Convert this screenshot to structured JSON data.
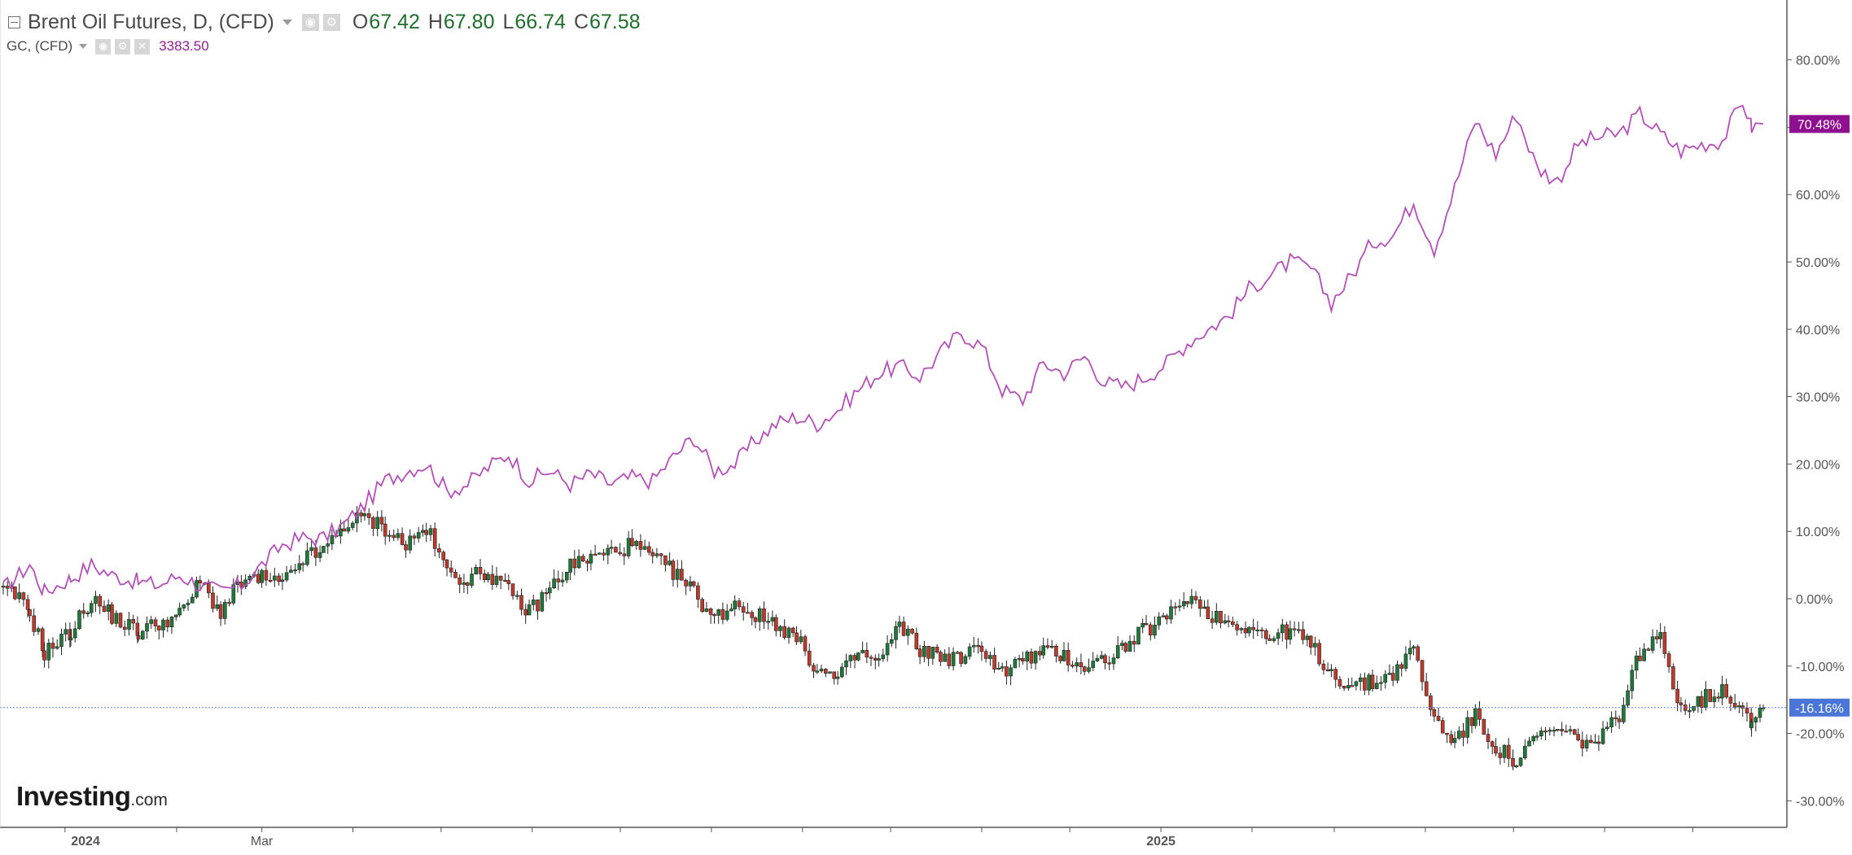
{
  "legend": {
    "main_title": "Brent Oil Futures, D, (CFD)",
    "ohlc": [
      {
        "label": "O",
        "value": "67.42"
      },
      {
        "label": "H",
        "value": "67.80"
      },
      {
        "label": "L",
        "value": "66.74"
      },
      {
        "label": "C",
        "value": "67.58"
      }
    ],
    "compare_title": "GC, (CFD)",
    "compare_value": "3383.50"
  },
  "icons": {
    "collapse": "collapse-icon",
    "eye": "eye-icon",
    "settings": "gear-icon",
    "close": "close-icon",
    "caret": "chevron-down-icon"
  },
  "watermark": {
    "brand": "Investing",
    "tld": ".com"
  },
  "colors": {
    "gold_line": "#b44fb8",
    "gold_badge": "#8e0f8f",
    "brent_badge": "#4a76d8",
    "candle_up": "#1f7a3a",
    "candle_down": "#c0392b",
    "price_line": "#5d88d6",
    "axis_text": "#555555",
    "axis_line": "#555555"
  },
  "chart_data": {
    "type": "line",
    "title": "Brent Oil Futures, D, (CFD)",
    "y_format": "percent",
    "ylim": [
      -33,
      88
    ],
    "y_ticks": [
      80,
      70,
      60,
      50,
      40,
      30,
      20,
      10,
      0,
      -10,
      -20,
      -30
    ],
    "y_tick_labels": [
      "80.00%",
      "70.00%",
      "60.00%",
      "50.00%",
      "40.00%",
      "30.00%",
      "20.00%",
      "10.00%",
      "0.00%",
      "-10.00%",
      "-20.00%",
      "-30.00%"
    ],
    "x_labels": [
      {
        "label": "2024",
        "date": "2024-01-01"
      },
      {
        "label": "Mar",
        "date": "2024-03-01"
      },
      {
        "label": "2025",
        "date": "2025-01-01"
      }
    ],
    "x_range": [
      "2023-12-04",
      "2025-07-25"
    ],
    "current_markers": [
      {
        "series": "GC, (CFD)",
        "value": 70.48,
        "label": "70.48%"
      },
      {
        "series": "Brent Oil Futures, D, (CFD)",
        "value": -16.16,
        "label": "-16.16%"
      }
    ],
    "grid": false,
    "series": [
      {
        "name": "GC, (CFD)",
        "kind": "line",
        "points": [
          [
            "2023-12-04",
            1.5
          ],
          [
            "2023-12-08",
            3.0
          ],
          [
            "2023-12-13",
            5.0
          ],
          [
            "2023-12-18",
            1.0
          ],
          [
            "2023-12-27",
            3.0
          ],
          [
            "2024-01-03",
            5.0
          ],
          [
            "2024-01-10",
            3.5
          ],
          [
            "2024-01-19",
            2.5
          ],
          [
            "2024-01-26",
            2.0
          ],
          [
            "2024-02-02",
            3.5
          ],
          [
            "2024-02-09",
            2.0
          ],
          [
            "2024-02-16",
            1.0
          ],
          [
            "2024-02-23",
            2.0
          ],
          [
            "2024-03-01",
            5.0
          ],
          [
            "2024-03-08",
            8.0
          ],
          [
            "2024-03-15",
            9.0
          ],
          [
            "2024-03-22",
            9.0
          ],
          [
            "2024-03-29",
            11.0
          ],
          [
            "2024-04-05",
            14.0
          ],
          [
            "2024-04-12",
            17.5
          ],
          [
            "2024-04-19",
            19.0
          ],
          [
            "2024-04-26",
            20.0
          ],
          [
            "2024-05-03",
            16.0
          ],
          [
            "2024-05-10",
            17.0
          ],
          [
            "2024-05-17",
            19.5
          ],
          [
            "2024-05-24",
            21.5
          ],
          [
            "2024-05-31",
            17.5
          ],
          [
            "2024-06-07",
            19.0
          ],
          [
            "2024-06-14",
            17.0
          ],
          [
            "2024-06-21",
            18.5
          ],
          [
            "2024-06-28",
            17.0
          ],
          [
            "2024-07-05",
            18.0
          ],
          [
            "2024-07-12",
            17.5
          ],
          [
            "2024-07-19",
            21.0
          ],
          [
            "2024-07-26",
            24.0
          ],
          [
            "2024-08-02",
            19.0
          ],
          [
            "2024-08-09",
            20.0
          ],
          [
            "2024-08-16",
            23.5
          ],
          [
            "2024-08-23",
            26.0
          ],
          [
            "2024-08-30",
            27.0
          ],
          [
            "2024-09-06",
            26.0
          ],
          [
            "2024-09-13",
            28.0
          ],
          [
            "2024-09-20",
            31.0
          ],
          [
            "2024-09-27",
            33.5
          ],
          [
            "2024-10-04",
            34.5
          ],
          [
            "2024-10-11",
            33.0
          ],
          [
            "2024-10-18",
            36.5
          ],
          [
            "2024-10-25",
            39.5
          ],
          [
            "2024-11-01",
            37.5
          ],
          [
            "2024-11-08",
            31.0
          ],
          [
            "2024-11-15",
            29.5
          ],
          [
            "2024-11-22",
            35.0
          ],
          [
            "2024-11-29",
            33.5
          ],
          [
            "2024-12-06",
            36.0
          ],
          [
            "2024-12-13",
            32.0
          ],
          [
            "2024-12-20",
            31.5
          ],
          [
            "2024-12-27",
            33.0
          ],
          [
            "2025-01-03",
            35.0
          ],
          [
            "2025-01-10",
            38.0
          ],
          [
            "2025-01-17",
            40.0
          ],
          [
            "2025-01-24",
            42.0
          ],
          [
            "2025-01-31",
            46.0
          ],
          [
            "2025-02-07",
            48.0
          ],
          [
            "2025-02-14",
            50.0
          ],
          [
            "2025-02-21",
            49.0
          ],
          [
            "2025-02-28",
            44.0
          ],
          [
            "2025-03-07",
            48.0
          ],
          [
            "2025-03-14",
            53.0
          ],
          [
            "2025-03-21",
            54.0
          ],
          [
            "2025-03-28",
            59.0
          ],
          [
            "2025-04-04",
            52.0
          ],
          [
            "2025-04-11",
            61.0
          ],
          [
            "2025-04-18",
            71.0
          ],
          [
            "2025-04-25",
            66.0
          ],
          [
            "2025-05-02",
            72.0
          ],
          [
            "2025-05-09",
            64.0
          ],
          [
            "2025-05-16",
            62.0
          ],
          [
            "2025-05-23",
            67.5
          ],
          [
            "2025-05-30",
            68.5
          ],
          [
            "2025-06-06",
            69.0
          ],
          [
            "2025-06-13",
            72.0
          ],
          [
            "2025-06-20",
            69.0
          ],
          [
            "2025-06-27",
            66.5
          ],
          [
            "2025-07-04",
            67.5
          ],
          [
            "2025-07-11",
            68.0
          ],
          [
            "2025-07-18",
            74.0
          ],
          [
            "2025-07-21",
            70.0
          ],
          [
            "2025-07-25",
            70.48
          ]
        ]
      },
      {
        "name": "Brent Oil Futures, D, (CFD)",
        "kind": "candlestick",
        "points": [
          [
            "2023-12-04",
            1.0
          ],
          [
            "2023-12-08",
            0.5
          ],
          [
            "2023-12-13",
            -2.0
          ],
          [
            "2023-12-18",
            -8.0
          ],
          [
            "2023-12-27",
            -5.0
          ],
          [
            "2024-01-03",
            0.0
          ],
          [
            "2024-01-10",
            -2.5
          ],
          [
            "2024-01-19",
            -5.0
          ],
          [
            "2024-01-26",
            -3.5
          ],
          [
            "2024-02-02",
            -2.5
          ],
          [
            "2024-02-09",
            2.5
          ],
          [
            "2024-02-16",
            -2.0
          ],
          [
            "2024-02-23",
            2.5
          ],
          [
            "2024-03-01",
            3.0
          ],
          [
            "2024-03-08",
            2.0
          ],
          [
            "2024-03-15",
            6.0
          ],
          [
            "2024-03-22",
            7.0
          ],
          [
            "2024-03-29",
            11.0
          ],
          [
            "2024-04-05",
            12.0
          ],
          [
            "2024-04-12",
            10.5
          ],
          [
            "2024-04-19",
            8.0
          ],
          [
            "2024-04-26",
            10.5
          ],
          [
            "2024-05-03",
            4.0
          ],
          [
            "2024-05-10",
            3.0
          ],
          [
            "2024-05-17",
            4.0
          ],
          [
            "2024-05-24",
            1.0
          ],
          [
            "2024-05-31",
            -2.0
          ],
          [
            "2024-06-07",
            1.5
          ],
          [
            "2024-06-14",
            5.0
          ],
          [
            "2024-06-21",
            6.0
          ],
          [
            "2024-06-28",
            7.0
          ],
          [
            "2024-07-05",
            8.0
          ],
          [
            "2024-07-12",
            6.0
          ],
          [
            "2024-07-19",
            4.0
          ],
          [
            "2024-07-26",
            1.0
          ],
          [
            "2024-08-02",
            -3.0
          ],
          [
            "2024-08-09",
            -0.5
          ],
          [
            "2024-08-16",
            -2.5
          ],
          [
            "2024-08-23",
            -3.5
          ],
          [
            "2024-08-30",
            -6.0
          ],
          [
            "2024-09-06",
            -10.5
          ],
          [
            "2024-09-13",
            -12.0
          ],
          [
            "2024-09-20",
            -8.0
          ],
          [
            "2024-09-27",
            -9.5
          ],
          [
            "2024-10-04",
            -4.0
          ],
          [
            "2024-10-11",
            -7.5
          ],
          [
            "2024-10-18",
            -8.5
          ],
          [
            "2024-10-25",
            -9.0
          ],
          [
            "2024-11-01",
            -7.0
          ],
          [
            "2024-11-08",
            -11.0
          ],
          [
            "2024-11-15",
            -9.0
          ],
          [
            "2024-11-22",
            -8.0
          ],
          [
            "2024-11-29",
            -8.5
          ],
          [
            "2024-12-06",
            -10.0
          ],
          [
            "2024-12-13",
            -9.0
          ],
          [
            "2024-12-20",
            -7.0
          ],
          [
            "2024-12-27",
            -4.5
          ],
          [
            "2025-01-03",
            -3.0
          ],
          [
            "2025-01-10",
            0.5
          ],
          [
            "2025-01-17",
            -2.0
          ],
          [
            "2025-01-24",
            -3.5
          ],
          [
            "2025-01-31",
            -4.0
          ],
          [
            "2025-02-07",
            -6.0
          ],
          [
            "2025-02-14",
            -4.5
          ],
          [
            "2025-02-21",
            -7.0
          ],
          [
            "2025-02-28",
            -11.0
          ],
          [
            "2025-03-07",
            -13.0
          ],
          [
            "2025-03-14",
            -12.5
          ],
          [
            "2025-03-21",
            -11.0
          ],
          [
            "2025-03-28",
            -7.5
          ],
          [
            "2025-04-04",
            -18.0
          ],
          [
            "2025-04-11",
            -21.0
          ],
          [
            "2025-04-18",
            -17.5
          ],
          [
            "2025-04-25",
            -22.0
          ],
          [
            "2025-05-02",
            -24.5
          ],
          [
            "2025-05-09",
            -20.5
          ],
          [
            "2025-05-16",
            -19.5
          ],
          [
            "2025-05-23",
            -21.0
          ],
          [
            "2025-05-30",
            -21.5
          ],
          [
            "2025-06-06",
            -17.0
          ],
          [
            "2025-06-13",
            -8.0
          ],
          [
            "2025-06-20",
            -6.0
          ],
          [
            "2025-06-27",
            -16.0
          ],
          [
            "2025-07-04",
            -15.0
          ],
          [
            "2025-07-11",
            -13.5
          ],
          [
            "2025-07-18",
            -16.0
          ],
          [
            "2025-07-21",
            -18.0
          ],
          [
            "2025-07-25",
            -16.16
          ]
        ]
      }
    ]
  }
}
